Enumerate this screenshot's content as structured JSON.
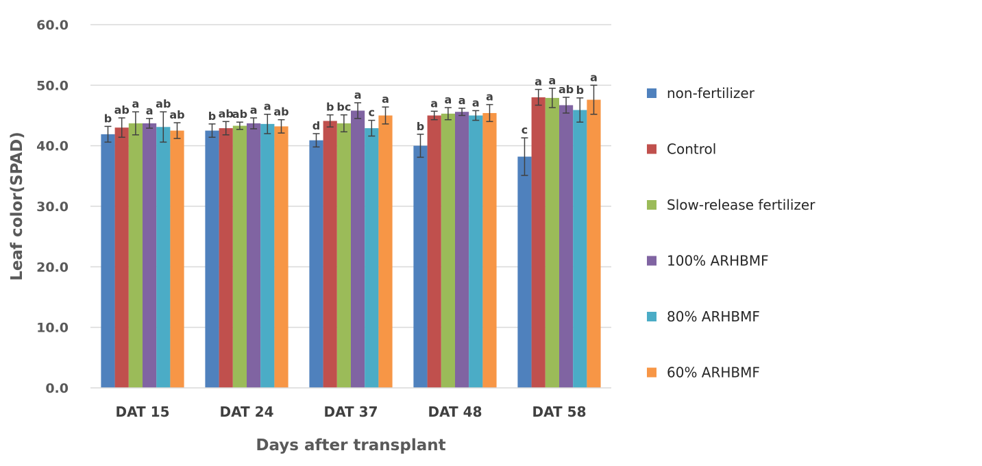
{
  "chart_data": {
    "type": "bar",
    "title": "",
    "xlabel": "Days after transplant",
    "ylabel": "Leaf color(SPAD)",
    "ylim": [
      0,
      60
    ],
    "y_ticks": [
      "0.0",
      "10.0",
      "20.0",
      "30.0",
      "40.0",
      "50.0",
      "60.0"
    ],
    "grid": true,
    "legend_position": "right",
    "categories": [
      "DAT 15",
      "DAT 24",
      "DAT 37",
      "DAT 48",
      "DAT 58"
    ],
    "series": [
      {
        "name": "non-fertilizer",
        "color": "#4F81BD",
        "values": [
          41.9,
          42.5,
          40.9,
          40.0,
          38.2
        ],
        "errors": [
          1.3,
          1.1,
          1.1,
          1.9,
          3.1
        ],
        "letters": [
          "b",
          "b",
          "d",
          "b",
          "c"
        ]
      },
      {
        "name": "Control",
        "color": "#C0504D",
        "values": [
          43.0,
          42.9,
          44.1,
          45.0,
          48.0
        ],
        "errors": [
          1.6,
          1.1,
          1.0,
          0.7,
          1.3
        ],
        "letters": [
          "ab",
          "ab",
          "b",
          "a",
          "a"
        ]
      },
      {
        "name": "Slow-release fertilizer",
        "color": "#9BBB59",
        "values": [
          43.7,
          43.3,
          43.7,
          45.3,
          47.9
        ],
        "errors": [
          1.9,
          0.6,
          1.4,
          1.0,
          1.6
        ],
        "letters": [
          "a",
          "ab",
          "bc",
          "a",
          "a"
        ]
      },
      {
        "name": "100% ARHBMF",
        "color": "#8064A2",
        "values": [
          43.7,
          43.7,
          45.8,
          45.6,
          46.7
        ],
        "errors": [
          0.8,
          0.9,
          1.3,
          0.6,
          1.3
        ],
        "letters": [
          "a",
          "a",
          "a",
          "a",
          "ab"
        ]
      },
      {
        "name": "80% ARHBMF",
        "color": "#4BACC6",
        "values": [
          43.1,
          43.6,
          42.9,
          45.0,
          45.9
        ],
        "errors": [
          2.5,
          1.6,
          1.3,
          0.8,
          2.0
        ],
        "letters": [
          "ab",
          "a",
          "c",
          "a",
          "b"
        ]
      },
      {
        "name": "60% ARHBMF",
        "color": "#F79646",
        "values": [
          42.5,
          43.2,
          45.0,
          45.4,
          47.6
        ],
        "errors": [
          1.3,
          1.1,
          1.4,
          1.4,
          2.4
        ],
        "letters": [
          "ab",
          "ab",
          "a",
          "a",
          "a"
        ]
      }
    ]
  },
  "style": {
    "grid_color": "#D9D9D9",
    "axis_color": "#D9D9D9",
    "error_bar_color": "#404040"
  }
}
